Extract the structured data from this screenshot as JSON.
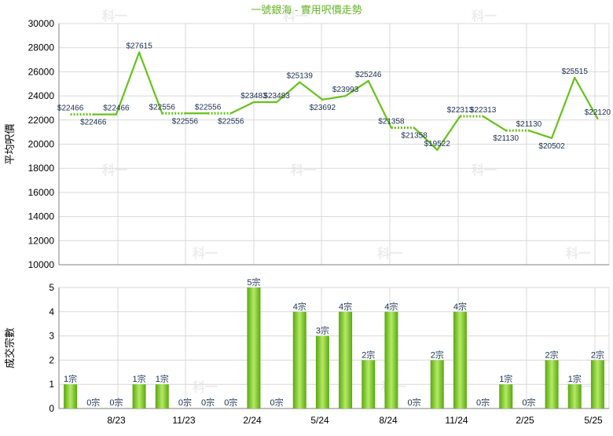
{
  "title": "一號銀海 - 實用呎價走勢",
  "colors": {
    "title": "#66b22a",
    "line": "#66c21a",
    "bar_dark": "#5aa70f",
    "bar_light": "#b4ea66",
    "label": "#1a2f52",
    "grid": "#d9d9d9",
    "axis": "#808080",
    "watermark": "#ececec"
  },
  "watermark_text": "科一",
  "chart_data": [
    {
      "type": "line",
      "ylabel": "平均呎價",
      "ylim": [
        10000,
        30000
      ],
      "yticks": [
        10000,
        12000,
        14000,
        16000,
        18000,
        20000,
        22000,
        24000,
        26000,
        28000,
        30000
      ],
      "xticks": [
        "8/23",
        "11/23",
        "2/24",
        "5/24",
        "8/24",
        "11/24",
        "2/25",
        "5/25"
      ],
      "series": [
        {
          "values": [
            22466,
            22466,
            22466,
            27615,
            22556,
            22556,
            22556,
            22556,
            23483,
            23483,
            25139,
            23692,
            23993,
            25246,
            21358,
            21358,
            19522,
            22313,
            22313,
            21130,
            21130,
            20502,
            25515,
            22120
          ],
          "labels": [
            "$22466",
            "$22466",
            "$22466",
            "$27615",
            "$22556",
            "$22556",
            "$22556",
            "$22556",
            "$23483",
            "$23483",
            "$25139",
            "$23692",
            "$23993",
            "$25246",
            "$21358",
            "$21358",
            "$19522",
            "$22313",
            "$22313",
            "$21130",
            "$21130",
            "$20502",
            "$25515",
            "$22120"
          ],
          "carried": [
            false,
            true,
            false,
            false,
            false,
            true,
            false,
            true,
            false,
            false,
            false,
            false,
            false,
            false,
            false,
            true,
            false,
            false,
            true,
            false,
            true,
            false,
            false,
            false
          ]
        }
      ]
    },
    {
      "type": "bar",
      "ylabel": "成交宗數",
      "ylim": [
        0,
        5
      ],
      "yticks": [
        0,
        1,
        2,
        3,
        4,
        5
      ],
      "xticks": [
        "8/23",
        "11/23",
        "2/24",
        "5/24",
        "8/24",
        "11/24",
        "2/25",
        "5/25"
      ],
      "values": [
        1,
        0,
        0,
        1,
        1,
        0,
        0,
        0,
        5,
        0,
        4,
        3,
        4,
        2,
        4,
        0,
        2,
        4,
        0,
        1,
        0,
        2,
        1,
        2
      ],
      "labels": [
        "1宗",
        "0宗",
        "0宗",
        "1宗",
        "1宗",
        "0宗",
        "0宗",
        "0宗",
        "5宗",
        "0宗",
        "4宗",
        "3宗",
        "4宗",
        "2宗",
        "4宗",
        "0宗",
        "2宗",
        "4宗",
        "0宗",
        "1宗",
        "0宗",
        "2宗",
        "1宗",
        "2宗"
      ]
    }
  ]
}
